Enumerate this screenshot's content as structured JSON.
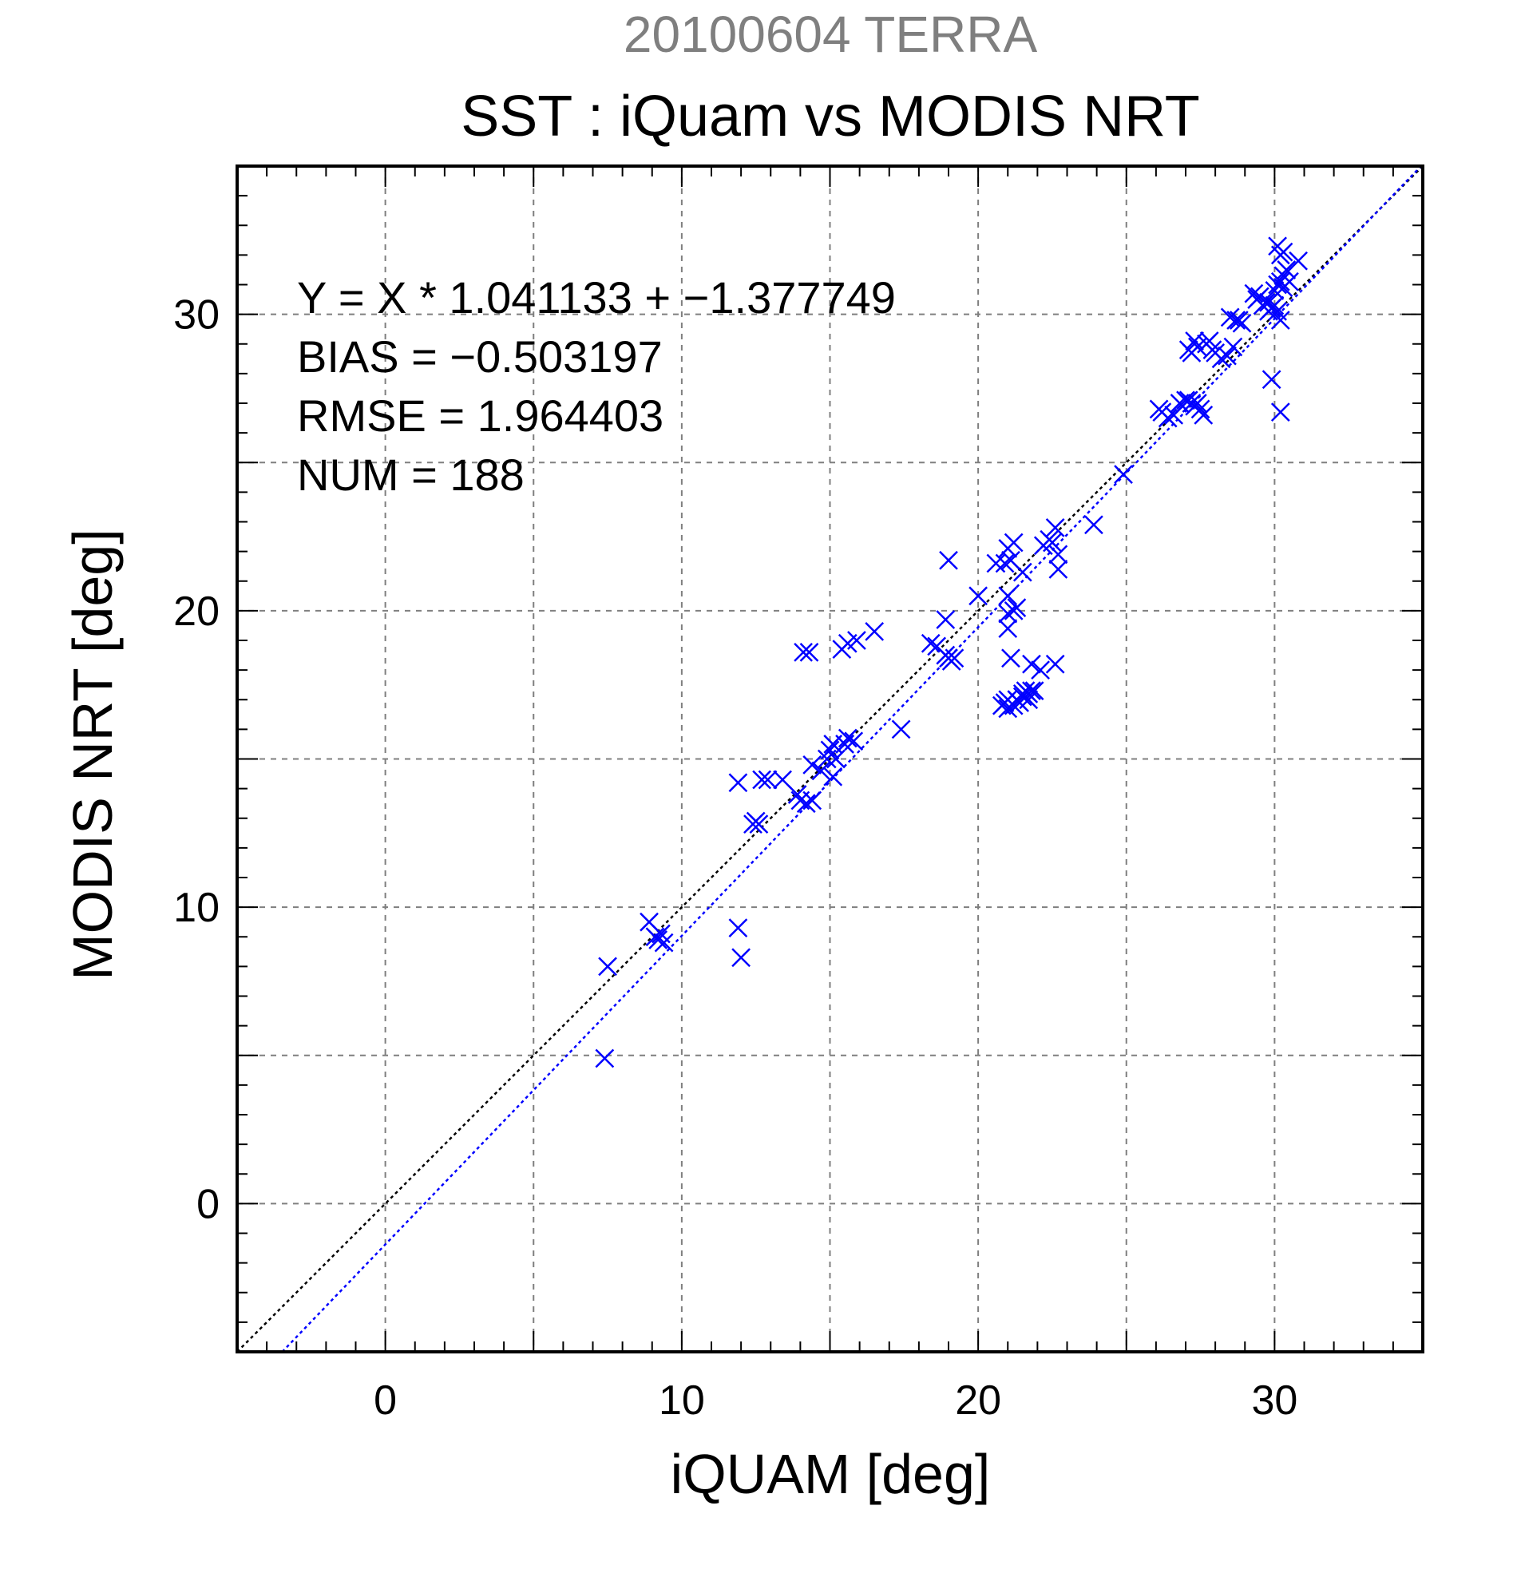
{
  "chart_data": {
    "type": "scatter",
    "supertitle": "20100604 TERRA",
    "title": "SST : iQuam vs MODIS NRT",
    "xlabel": "iQUAM [deg]",
    "ylabel": "MODIS NRT [deg]",
    "xlim": [
      -5,
      35
    ],
    "ylim": [
      -5,
      35
    ],
    "major_ticks": [
      0,
      10,
      20,
      30
    ],
    "grid_ticks": [
      0,
      5,
      10,
      15,
      20,
      25,
      30
    ],
    "grid": true,
    "stats": [
      "Y = X * 1.041133 + −1.377749",
      "BIAS = −0.503197",
      "RMSE = 1.964403",
      "NUM = 188"
    ],
    "fit": {
      "slope": 1.041133,
      "intercept": -1.377749
    },
    "colors": {
      "points": "#0000ff",
      "fit_line": "#0000ff",
      "one_to_one": "#000000",
      "supertitle": "#7f7f7f",
      "grid": "#7f7f7f"
    },
    "series": [
      {
        "marker": "x",
        "x": [
          7.5,
          7.4,
          8.9,
          9.1,
          9.2,
          9.3,
          9.4,
          11.9,
          12.0,
          11.9,
          12.4,
          12.6,
          12.5,
          12.7,
          12.9,
          13.4,
          13.9,
          14.0,
          14.2,
          14.4,
          14.3,
          14.1,
          14.4,
          14.7,
          14.9,
          15.0,
          15.1,
          15.2,
          15.1,
          15.5,
          15.6,
          15.8,
          15.4,
          15.6,
          15.9,
          16.5,
          17.4,
          18.4,
          18.6,
          18.9,
          19.0,
          19.1,
          19.2,
          18.9,
          19.0,
          20.0,
          20.6,
          20.9,
          21.0,
          21.2,
          21.3,
          21.5,
          21.0,
          21.1,
          21.2,
          21.0,
          21.0,
          21.1,
          21.0,
          20.8,
          20.9,
          21.0,
          21.2,
          21.3,
          21.4,
          21.5,
          21.6,
          21.7,
          21.8,
          21.3,
          21.5,
          21.7,
          21.9,
          22.1,
          22.6,
          21.8,
          22.2,
          22.4,
          22.5,
          22.6,
          22.7,
          22.7,
          23.9,
          24.9,
          26.1,
          26.2,
          26.4,
          26.6,
          26.8,
          27.0,
          27.1,
          27.2,
          27.3,
          27.4,
          27.7,
          27.1,
          27.2,
          27.3,
          27.4,
          27.5,
          27.6,
          27.8,
          27.9,
          28.0,
          28.2,
          28.4,
          28.6,
          28.8,
          28.5,
          28.7,
          28.9,
          29.3,
          29.4,
          29.5,
          29.6,
          29.7,
          29.8,
          29.9,
          30.0,
          30.1,
          30.2,
          30.3,
          30.1,
          30.3,
          30.2,
          30.5,
          30.8,
          29.9,
          30.0,
          30.1,
          29.8,
          30.2,
          30.4,
          30.3
        ],
        "y": [
          8.0,
          4.9,
          9.5,
          9.0,
          8.9,
          9.1,
          8.8,
          9.3,
          8.3,
          14.2,
          12.8,
          12.8,
          12.9,
          14.3,
          14.3,
          14.3,
          13.8,
          13.6,
          13.5,
          13.6,
          18.6,
          18.6,
          14.8,
          14.6,
          15.0,
          15.3,
          14.4,
          15.0,
          15.5,
          15.5,
          15.7,
          15.6,
          18.7,
          18.9,
          19.0,
          19.3,
          16.0,
          18.9,
          18.8,
          18.5,
          18.4,
          18.3,
          18.4,
          19.7,
          21.7,
          20.5,
          21.6,
          21.6,
          20.5,
          20.0,
          20.1,
          21.3,
          22.1,
          21.7,
          22.3,
          19.4,
          19.9,
          18.4,
          17.0,
          16.8,
          16.9,
          16.7,
          16.8,
          17.0,
          16.9,
          17.2,
          17.3,
          17.0,
          17.3,
          17.0,
          17.1,
          17.2,
          17.3,
          18.0,
          18.2,
          18.2,
          22.2,
          22.4,
          22.3,
          22.8,
          21.4,
          21.9,
          22.9,
          24.6,
          26.8,
          26.7,
          26.5,
          26.6,
          27.0,
          27.1,
          28.8,
          28.7,
          29.1,
          28.9,
          29.0,
          27.1,
          27.0,
          26.9,
          27.0,
          26.8,
          26.6,
          29.1,
          28.8,
          28.7,
          28.5,
          28.6,
          28.9,
          29.8,
          29.9,
          29.8,
          29.7,
          30.7,
          30.5,
          30.6,
          30.3,
          30.4,
          30.1,
          30.2,
          30.8,
          31.0,
          31.1,
          31.3,
          32.3,
          32.1,
          32.0,
          31.1,
          31.8,
          30.2,
          30.3,
          30.1,
          30.4,
          29.8,
          31.5,
          30.9
        ]
      },
      {
        "marker": "x",
        "x": [
          29.9,
          30.2
        ],
        "y": [
          27.8,
          26.7
        ]
      }
    ]
  }
}
